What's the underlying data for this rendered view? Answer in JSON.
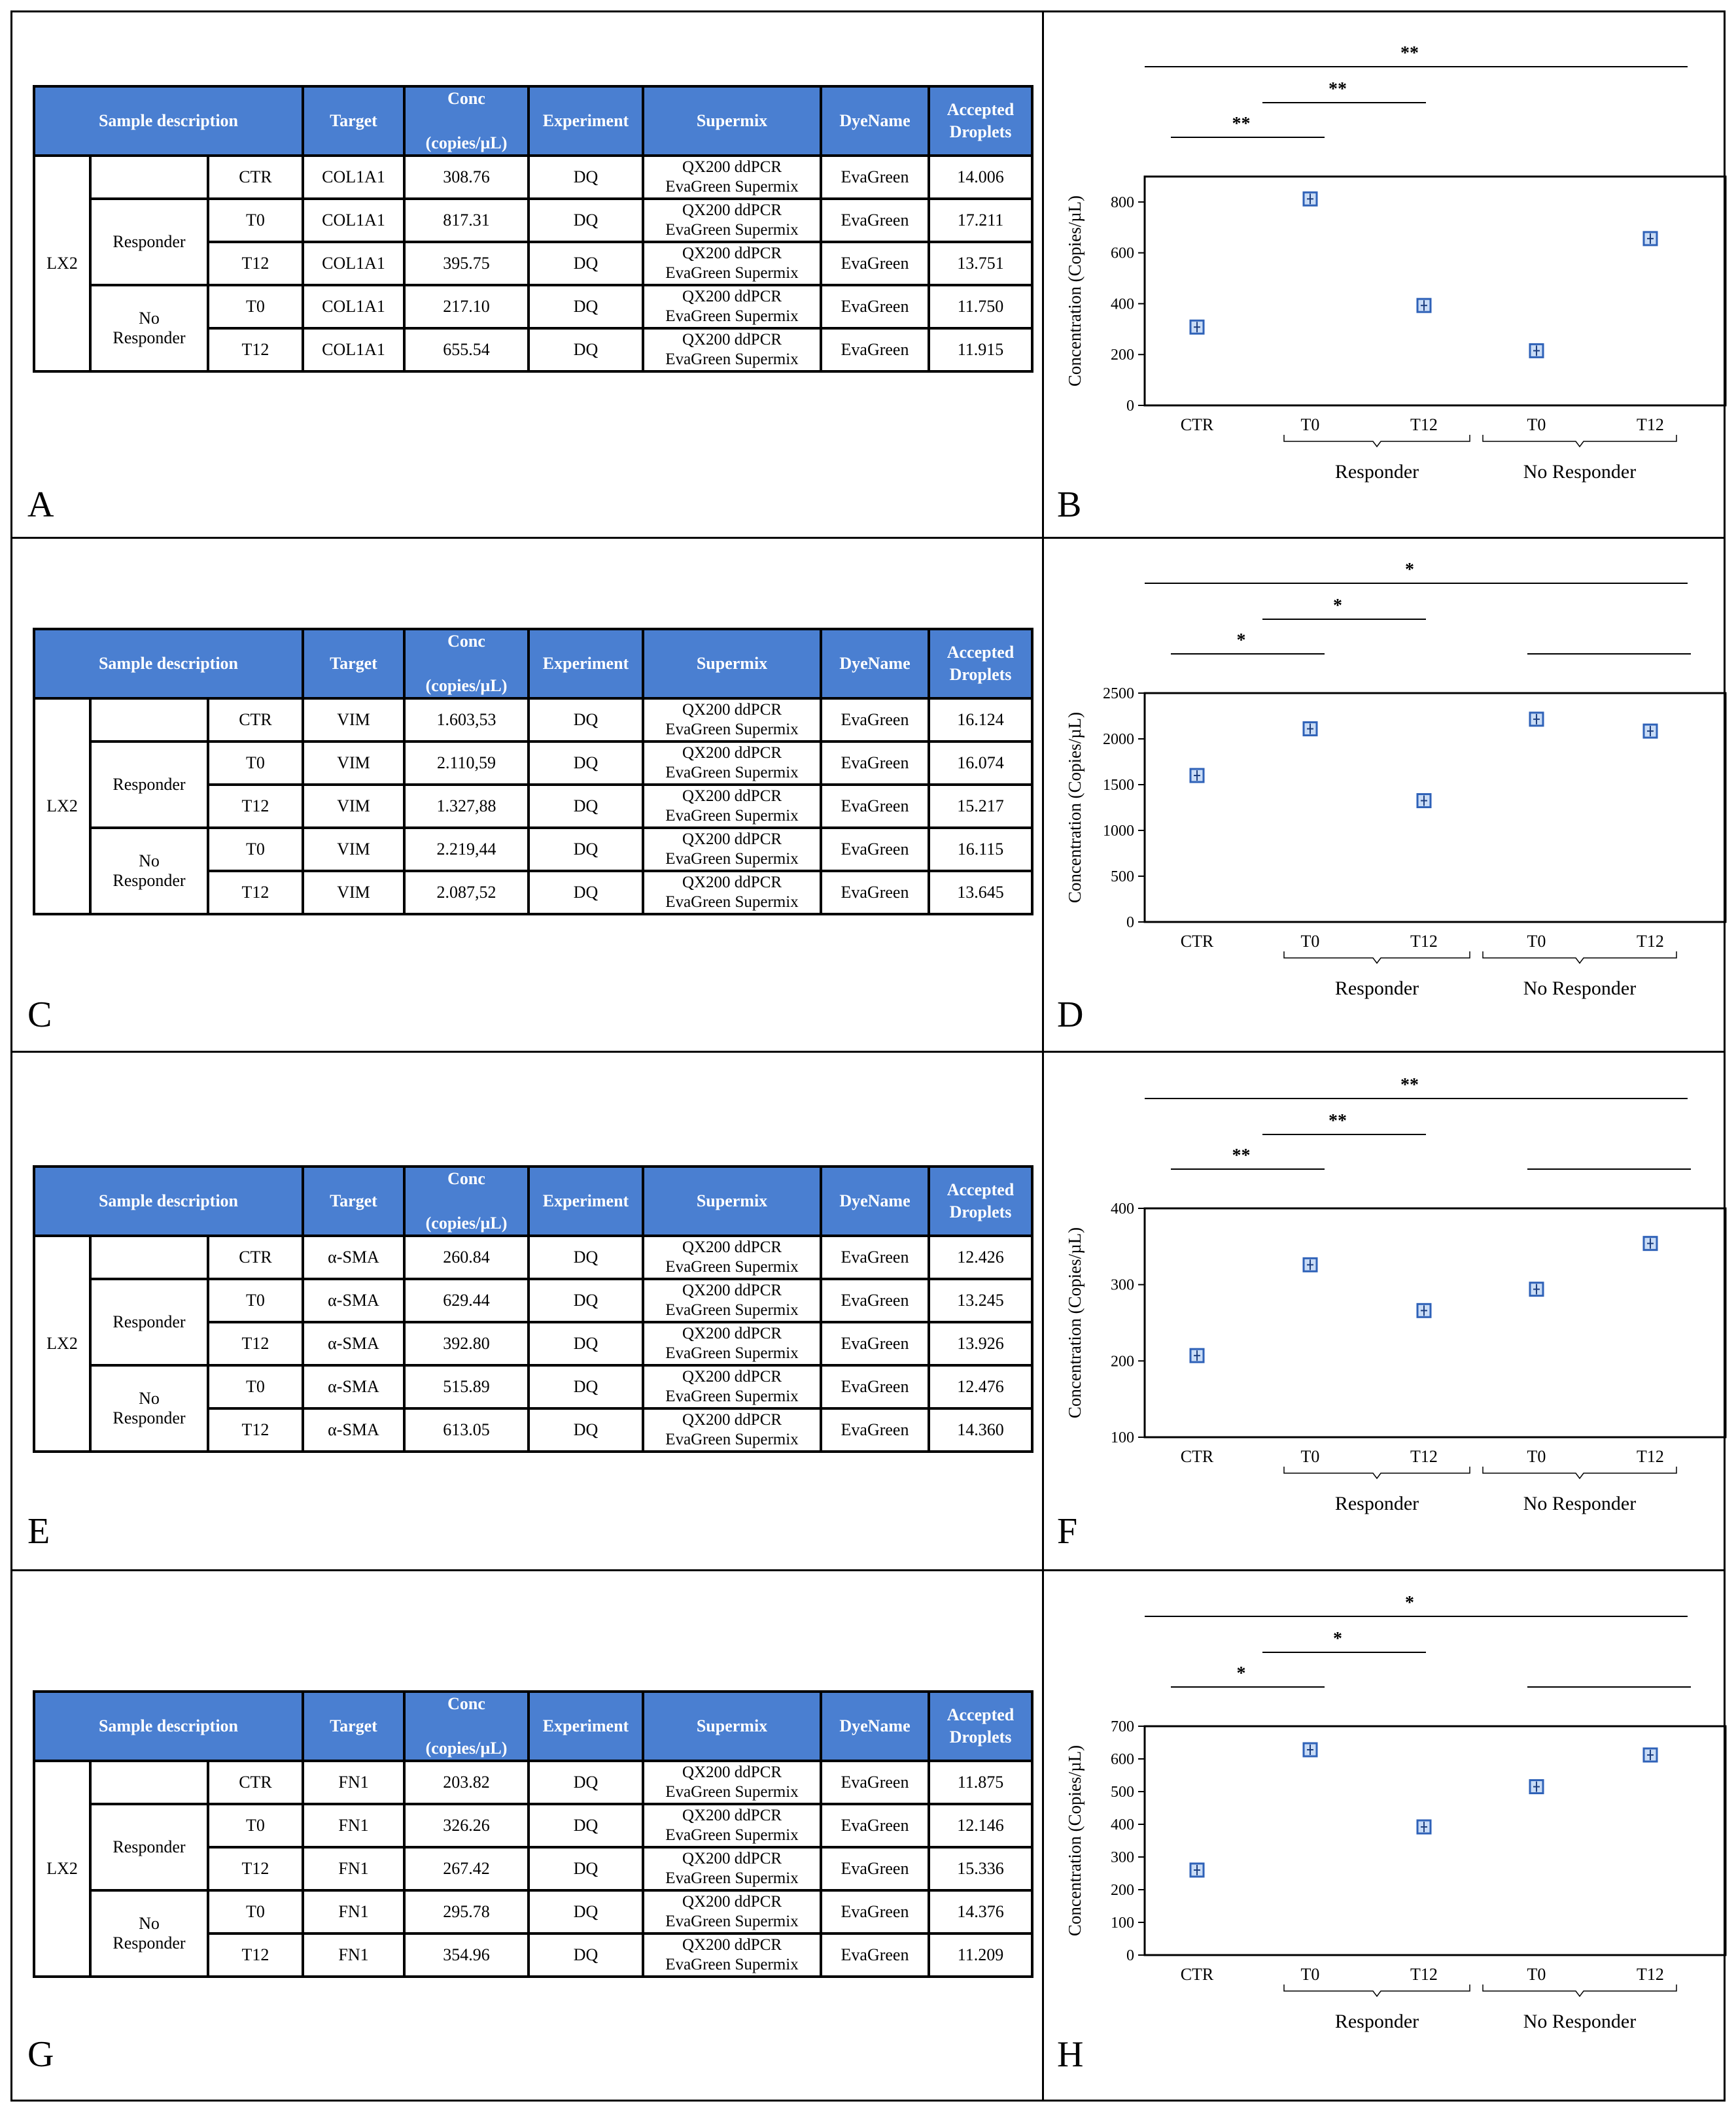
{
  "header": {
    "sample_description": "Sample description",
    "target": "Target",
    "conc_line1": "Conc",
    "conc_line2": "(copies/µL)",
    "experiment": "Experiment",
    "supermix": "Supermix",
    "dyename": "DyeName",
    "accepted_line1": "Accepted",
    "accepted_line2": "Droplets"
  },
  "groups": {
    "cell_line": "LX2",
    "responder": "Responder",
    "no_responder_line1": "No",
    "no_responder_line2": "Responder"
  },
  "common": {
    "experiment": "DQ",
    "supermix_line1": "QX200 ddPCR",
    "supermix_line2": "EvaGreen Supermix",
    "dye": "EvaGreen"
  },
  "tables": [
    {
      "letter": "A",
      "rows": [
        {
          "sample": "CTR",
          "target": "COL1A1",
          "conc": "308.76",
          "droplets": "14.006"
        },
        {
          "sample": "T0",
          "target": "COL1A1",
          "conc": "817.31",
          "droplets": "17.211"
        },
        {
          "sample": "T12",
          "target": "COL1A1",
          "conc": "395.75",
          "droplets": "13.751"
        },
        {
          "sample": "T0",
          "target": "COL1A1",
          "conc": "217.10",
          "droplets": "11.750"
        },
        {
          "sample": "T12",
          "target": "COL1A1",
          "conc": "655.54",
          "droplets": "11.915"
        }
      ]
    },
    {
      "letter": "C",
      "rows": [
        {
          "sample": "CTR",
          "target": "VIM",
          "conc": "1.603,53",
          "droplets": "16.124"
        },
        {
          "sample": "T0",
          "target": "VIM",
          "conc": "2.110,59",
          "droplets": "16.074"
        },
        {
          "sample": "T12",
          "target": "VIM",
          "conc": "1.327,88",
          "droplets": "15.217"
        },
        {
          "sample": "T0",
          "target": "VIM",
          "conc": "2.219,44",
          "droplets": "16.115"
        },
        {
          "sample": "T12",
          "target": "VIM",
          "conc": "2.087,52",
          "droplets": "13.645"
        }
      ]
    },
    {
      "letter": "E",
      "rows": [
        {
          "sample": "CTR",
          "target": "α-SMA",
          "conc": "260.84",
          "droplets": "12.426"
        },
        {
          "sample": "T0",
          "target": "α-SMA",
          "conc": "629.44",
          "droplets": "13.245"
        },
        {
          "sample": "T12",
          "target": "α-SMA",
          "conc": "392.80",
          "droplets": "13.926"
        },
        {
          "sample": "T0",
          "target": "α-SMA",
          "conc": "515.89",
          "droplets": "12.476"
        },
        {
          "sample": "T12",
          "target": "α-SMA",
          "conc": "613.05",
          "droplets": "14.360"
        }
      ]
    },
    {
      "letter": "G",
      "rows": [
        {
          "sample": "CTR",
          "target": "FN1",
          "conc": "203.82",
          "droplets": "11.875"
        },
        {
          "sample": "T0",
          "target": "FN1",
          "conc": "326.26",
          "droplets": "12.146"
        },
        {
          "sample": "T12",
          "target": "FN1",
          "conc": "267.42",
          "droplets": "15.336"
        },
        {
          "sample": "T0",
          "target": "FN1",
          "conc": "295.78",
          "droplets": "14.376"
        },
        {
          "sample": "T12",
          "target": "FN1",
          "conc": "354.96",
          "droplets": "11.209"
        }
      ]
    }
  ],
  "chart_data": [
    {
      "type": "scatter",
      "letter": "B",
      "categories": [
        "CTR",
        "T0",
        "T12",
        "T0",
        "T12"
      ],
      "values": [
        308,
        812,
        393,
        215,
        656
      ],
      "ylabel": "Concentration (Copies/µL)",
      "ylim": [
        0,
        900
      ],
      "yticks": [
        0,
        200,
        400,
        600,
        800
      ],
      "group_labels": [
        "Responder",
        "No Responder"
      ],
      "significance": [
        {
          "from": "CTR",
          "to": "T0",
          "label": "**"
        },
        {
          "from": "T0",
          "to": "T12",
          "label": "**"
        },
        {
          "from": "CTR",
          "to": "No Responder T12",
          "label": "**"
        }
      ]
    },
    {
      "type": "scatter",
      "letter": "D",
      "categories": [
        "CTR",
        "T0",
        "T12",
        "T0",
        "T12"
      ],
      "values": [
        1600,
        2110,
        1325,
        2215,
        2085
      ],
      "ylabel": "Concentration (Copies/µL)",
      "ylim": [
        0,
        2500
      ],
      "yticks": [
        0,
        500,
        1000,
        1500,
        2000,
        2500
      ],
      "group_labels": [
        "Responder",
        "No Responder"
      ],
      "significance": [
        {
          "from": "CTR",
          "to": "T0",
          "label": "*"
        },
        {
          "from": "T0",
          "to": "T12",
          "label": "*"
        },
        {
          "from": "CTR",
          "to": "No Responder T12",
          "label": "*"
        },
        {
          "from": "No Responder T0",
          "to": "No Responder T12",
          "label": ""
        }
      ]
    },
    {
      "type": "scatter",
      "letter": "F",
      "categories": [
        "CTR",
        "T0",
        "T12",
        "T0",
        "T12"
      ],
      "values": [
        207,
        326,
        266,
        294,
        354
      ],
      "ylabel": "Concentration (Copies/µL)",
      "ylim": [
        100,
        400
      ],
      "yticks": [
        100,
        200,
        300,
        400
      ],
      "group_labels": [
        "Responder",
        "No Responder"
      ],
      "significance": [
        {
          "from": "CTR",
          "to": "T0",
          "label": "**"
        },
        {
          "from": "T0",
          "to": "T12",
          "label": "**"
        },
        {
          "from": "CTR",
          "to": "No Responder T12",
          "label": "**"
        },
        {
          "from": "No Responder T0",
          "to": "No Responder T12",
          "label": ""
        }
      ]
    },
    {
      "type": "scatter",
      "letter": "H",
      "categories": [
        "CTR",
        "T0",
        "T12",
        "T0",
        "T12"
      ],
      "values": [
        260,
        628,
        392,
        515,
        612
      ],
      "ylabel": "Concentration (Copies/µL)",
      "ylim": [
        0,
        700
      ],
      "yticks": [
        0,
        100,
        200,
        300,
        400,
        500,
        600,
        700
      ],
      "group_labels": [
        "Responder",
        "No Responder"
      ],
      "significance": [
        {
          "from": "CTR",
          "to": "T0",
          "label": "*"
        },
        {
          "from": "T0",
          "to": "T12",
          "label": "*"
        },
        {
          "from": "CTR",
          "to": "No Responder T12",
          "label": "*"
        },
        {
          "from": "No Responder T0",
          "to": "No Responder T12",
          "label": ""
        }
      ]
    }
  ]
}
